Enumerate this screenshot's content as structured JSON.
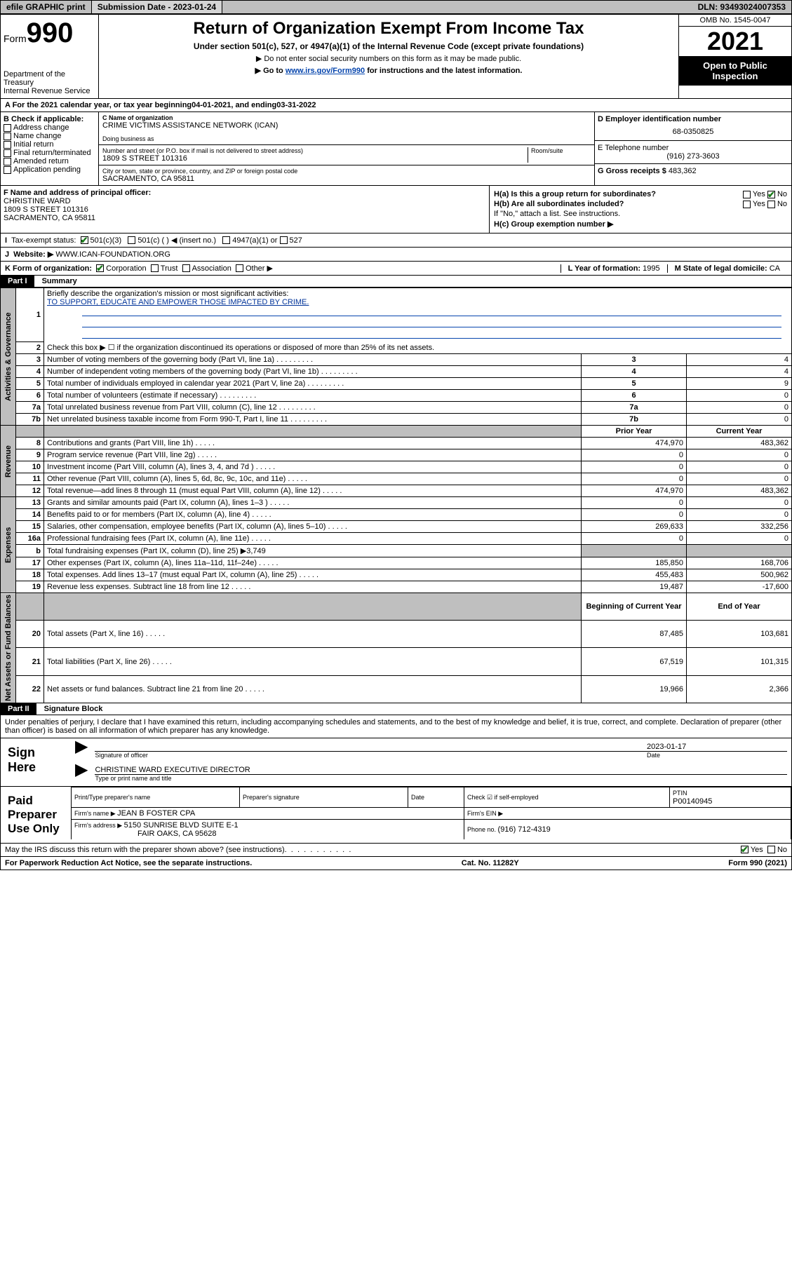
{
  "topbar": {
    "efile_label": "efile GRAPHIC print",
    "submission_label": "Submission Date - 2023-01-24",
    "dln_label": "DLN: 93493024007353"
  },
  "header": {
    "form_word": "Form",
    "form_num": "990",
    "title": "Return of Organization Exempt From Income Tax",
    "sub1": "Under section 501(c), 527, or 4947(a)(1) of the Internal Revenue Code (except private foundations)",
    "sub2": "▶ Do not enter social security numbers on this form as it may be made public.",
    "sub3_prefix": "▶ Go to ",
    "sub3_link": "www.irs.gov/Form990",
    "sub3_suffix": " for instructions and the latest information.",
    "dept": "Department of the Treasury\nInternal Revenue Service",
    "omb": "OMB No. 1545-0047",
    "year": "2021",
    "open": "Open to Public Inspection"
  },
  "line_a": {
    "text_prefix": "A For the 2021 calendar year, or tax year beginning ",
    "begin": "04-01-2021",
    "mid": " , and ending ",
    "end": "03-31-2022"
  },
  "sec_b": {
    "label": "B Check if applicable:",
    "items": [
      "Address change",
      "Name change",
      "Initial return",
      "Final return/terminated",
      "Amended return",
      "Application pending"
    ]
  },
  "sec_c": {
    "name_lbl": "C Name of organization",
    "name": "CRIME VICTIMS ASSISTANCE NETWORK (ICAN)",
    "dba_lbl": "Doing business as",
    "addr_lbl": "Number and street (or P.O. box if mail is not delivered to street address)",
    "room_lbl": "Room/suite",
    "addr": "1809 S STREET 101316",
    "city_lbl": "City or town, state or province, country, and ZIP or foreign postal code",
    "city": "SACRAMENTO, CA  95811"
  },
  "sec_d": {
    "ein_lbl": "D Employer identification number",
    "ein": "68-0350825",
    "tel_lbl": "E Telephone number",
    "tel": "(916) 273-3603",
    "gross_lbl": "G Gross receipts $ ",
    "gross": "483,362"
  },
  "sec_f": {
    "lbl": "F Name and address of principal officer:",
    "name": "CHRISTINE WARD",
    "addr1": "1809 S STREET 101316",
    "addr2": "SACRAMENTO, CA  95811"
  },
  "sec_h": {
    "ha": "H(a)  Is this a group return for subordinates?",
    "hb": "H(b)  Are all subordinates included?",
    "hb_note": "If \"No,\" attach a list. See instructions.",
    "hc": "H(c)  Group exemption number ▶",
    "yes": "Yes",
    "no": "No"
  },
  "sec_i": {
    "lbl": "Tax-exempt status:",
    "i_lbl": "I",
    "opts": [
      "501(c)(3)",
      "501(c) (  ) ◀ (insert no.)",
      "4947(a)(1) or",
      "527"
    ]
  },
  "sec_j": {
    "lbl": "J",
    "text": "Website: ▶",
    "val": "WWW.ICAN-FOUNDATION.ORG"
  },
  "sec_k": {
    "lbl": "K Form of organization:",
    "opts": [
      "Corporation",
      "Trust",
      "Association",
      "Other ▶"
    ],
    "l_lbl": "L Year of formation: ",
    "l_val": "1995",
    "m_lbl": "M State of legal domicile: ",
    "m_val": "CA"
  },
  "part1": {
    "hdr": "Part I",
    "title": "Summary",
    "q1": "Briefly describe the organization's mission or most significant activities:",
    "mission": "TO SUPPORT, EDUCATE AND EMPOWER THOSE IMPACTED BY CRIME.",
    "q2": "Check this box ▶ ☐  if the organization discontinued its operations or disposed of more than 25% of its net assets.",
    "sections": {
      "gov": "Activities & Governance",
      "rev": "Revenue",
      "exp": "Expenses",
      "net": "Net Assets or Fund Balances"
    },
    "col_prior": "Prior Year",
    "col_curr": "Current Year",
    "col_begin": "Beginning of Current Year",
    "col_end": "End of Year",
    "gov_rows": [
      {
        "n": "3",
        "t": "Number of voting members of the governing body (Part VI, line 1a)",
        "v": "4"
      },
      {
        "n": "4",
        "t": "Number of independent voting members of the governing body (Part VI, line 1b)",
        "v": "4"
      },
      {
        "n": "5",
        "t": "Total number of individuals employed in calendar year 2021 (Part V, line 2a)",
        "v": "9"
      },
      {
        "n": "6",
        "t": "Total number of volunteers (estimate if necessary)",
        "v": "0"
      },
      {
        "n": "7a",
        "t": "Total unrelated business revenue from Part VIII, column (C), line 12",
        "v": "0"
      },
      {
        "n": "7b",
        "t": "Net unrelated business taxable income from Form 990-T, Part I, line 11",
        "v": "0"
      }
    ],
    "rev_rows": [
      {
        "n": "8",
        "t": "Contributions and grants (Part VIII, line 1h)",
        "p": "474,970",
        "c": "483,362"
      },
      {
        "n": "9",
        "t": "Program service revenue (Part VIII, line 2g)",
        "p": "0",
        "c": "0"
      },
      {
        "n": "10",
        "t": "Investment income (Part VIII, column (A), lines 3, 4, and 7d )",
        "p": "0",
        "c": "0"
      },
      {
        "n": "11",
        "t": "Other revenue (Part VIII, column (A), lines 5, 6d, 8c, 9c, 10c, and 11e)",
        "p": "0",
        "c": "0"
      },
      {
        "n": "12",
        "t": "Total revenue—add lines 8 through 11 (must equal Part VIII, column (A), line 12)",
        "p": "474,970",
        "c": "483,362"
      }
    ],
    "exp_rows": [
      {
        "n": "13",
        "t": "Grants and similar amounts paid (Part IX, column (A), lines 1–3 )",
        "p": "0",
        "c": "0"
      },
      {
        "n": "14",
        "t": "Benefits paid to or for members (Part IX, column (A), line 4)",
        "p": "0",
        "c": "0"
      },
      {
        "n": "15",
        "t": "Salaries, other compensation, employee benefits (Part IX, column (A), lines 5–10)",
        "p": "269,633",
        "c": "332,256"
      },
      {
        "n": "16a",
        "t": "Professional fundraising fees (Part IX, column (A), line 11e)",
        "p": "0",
        "c": "0"
      }
    ],
    "exp_b": {
      "n": "b",
      "t": "Total fundraising expenses (Part IX, column (D), line 25) ▶3,749"
    },
    "exp_rows2": [
      {
        "n": "17",
        "t": "Other expenses (Part IX, column (A), lines 11a–11d, 11f–24e)",
        "p": "185,850",
        "c": "168,706"
      },
      {
        "n": "18",
        "t": "Total expenses. Add lines 13–17 (must equal Part IX, column (A), line 25)",
        "p": "455,483",
        "c": "500,962"
      },
      {
        "n": "19",
        "t": "Revenue less expenses. Subtract line 18 from line 12",
        "p": "19,487",
        "c": "-17,600"
      }
    ],
    "net_rows": [
      {
        "n": "20",
        "t": "Total assets (Part X, line 16)",
        "p": "87,485",
        "c": "103,681"
      },
      {
        "n": "21",
        "t": "Total liabilities (Part X, line 26)",
        "p": "67,519",
        "c": "101,315"
      },
      {
        "n": "22",
        "t": "Net assets or fund balances. Subtract line 21 from line 20",
        "p": "19,966",
        "c": "2,366"
      }
    ]
  },
  "part2": {
    "hdr": "Part II",
    "title": "Signature Block",
    "decl": "Under penalties of perjury, I declare that I have examined this return, including accompanying schedules and statements, and to the best of my knowledge and belief, it is true, correct, and complete. Declaration of preparer (other than officer) is based on all information of which preparer has any knowledge.",
    "sign_here": "Sign Here",
    "sig_officer_lbl": "Signature of officer",
    "date_lbl": "Date",
    "sig_date": "2023-01-17",
    "officer_name": "CHRISTINE WARD  EXECUTIVE DIRECTOR",
    "name_title_lbl": "Type or print name and title",
    "paid": "Paid Preparer Use Only",
    "print_lbl": "Print/Type preparer's name",
    "prep_sig_lbl": "Preparer's signature",
    "check_lbl": "Check ☑ if self-employed",
    "ptin_lbl": "PTIN",
    "ptin": "P00140945",
    "firm_name_lbl": "Firm's name    ▶ ",
    "firm_name": "JEAN B FOSTER CPA",
    "firm_ein_lbl": "Firm's EIN ▶",
    "firm_addr_lbl": "Firm's address ▶ ",
    "firm_addr1": "5150 SUNRISE BLVD SUITE E-1",
    "firm_addr2": "FAIR OAKS, CA  95628",
    "phone_lbl": "Phone no. ",
    "phone": "(916) 712-4319",
    "discuss": "May the IRS discuss this return with the preparer shown above? (see instructions)"
  },
  "footer": {
    "left": "For Paperwork Reduction Act Notice, see the separate instructions.",
    "mid": "Cat. No. 11282Y",
    "right": "Form 990 (2021)"
  }
}
